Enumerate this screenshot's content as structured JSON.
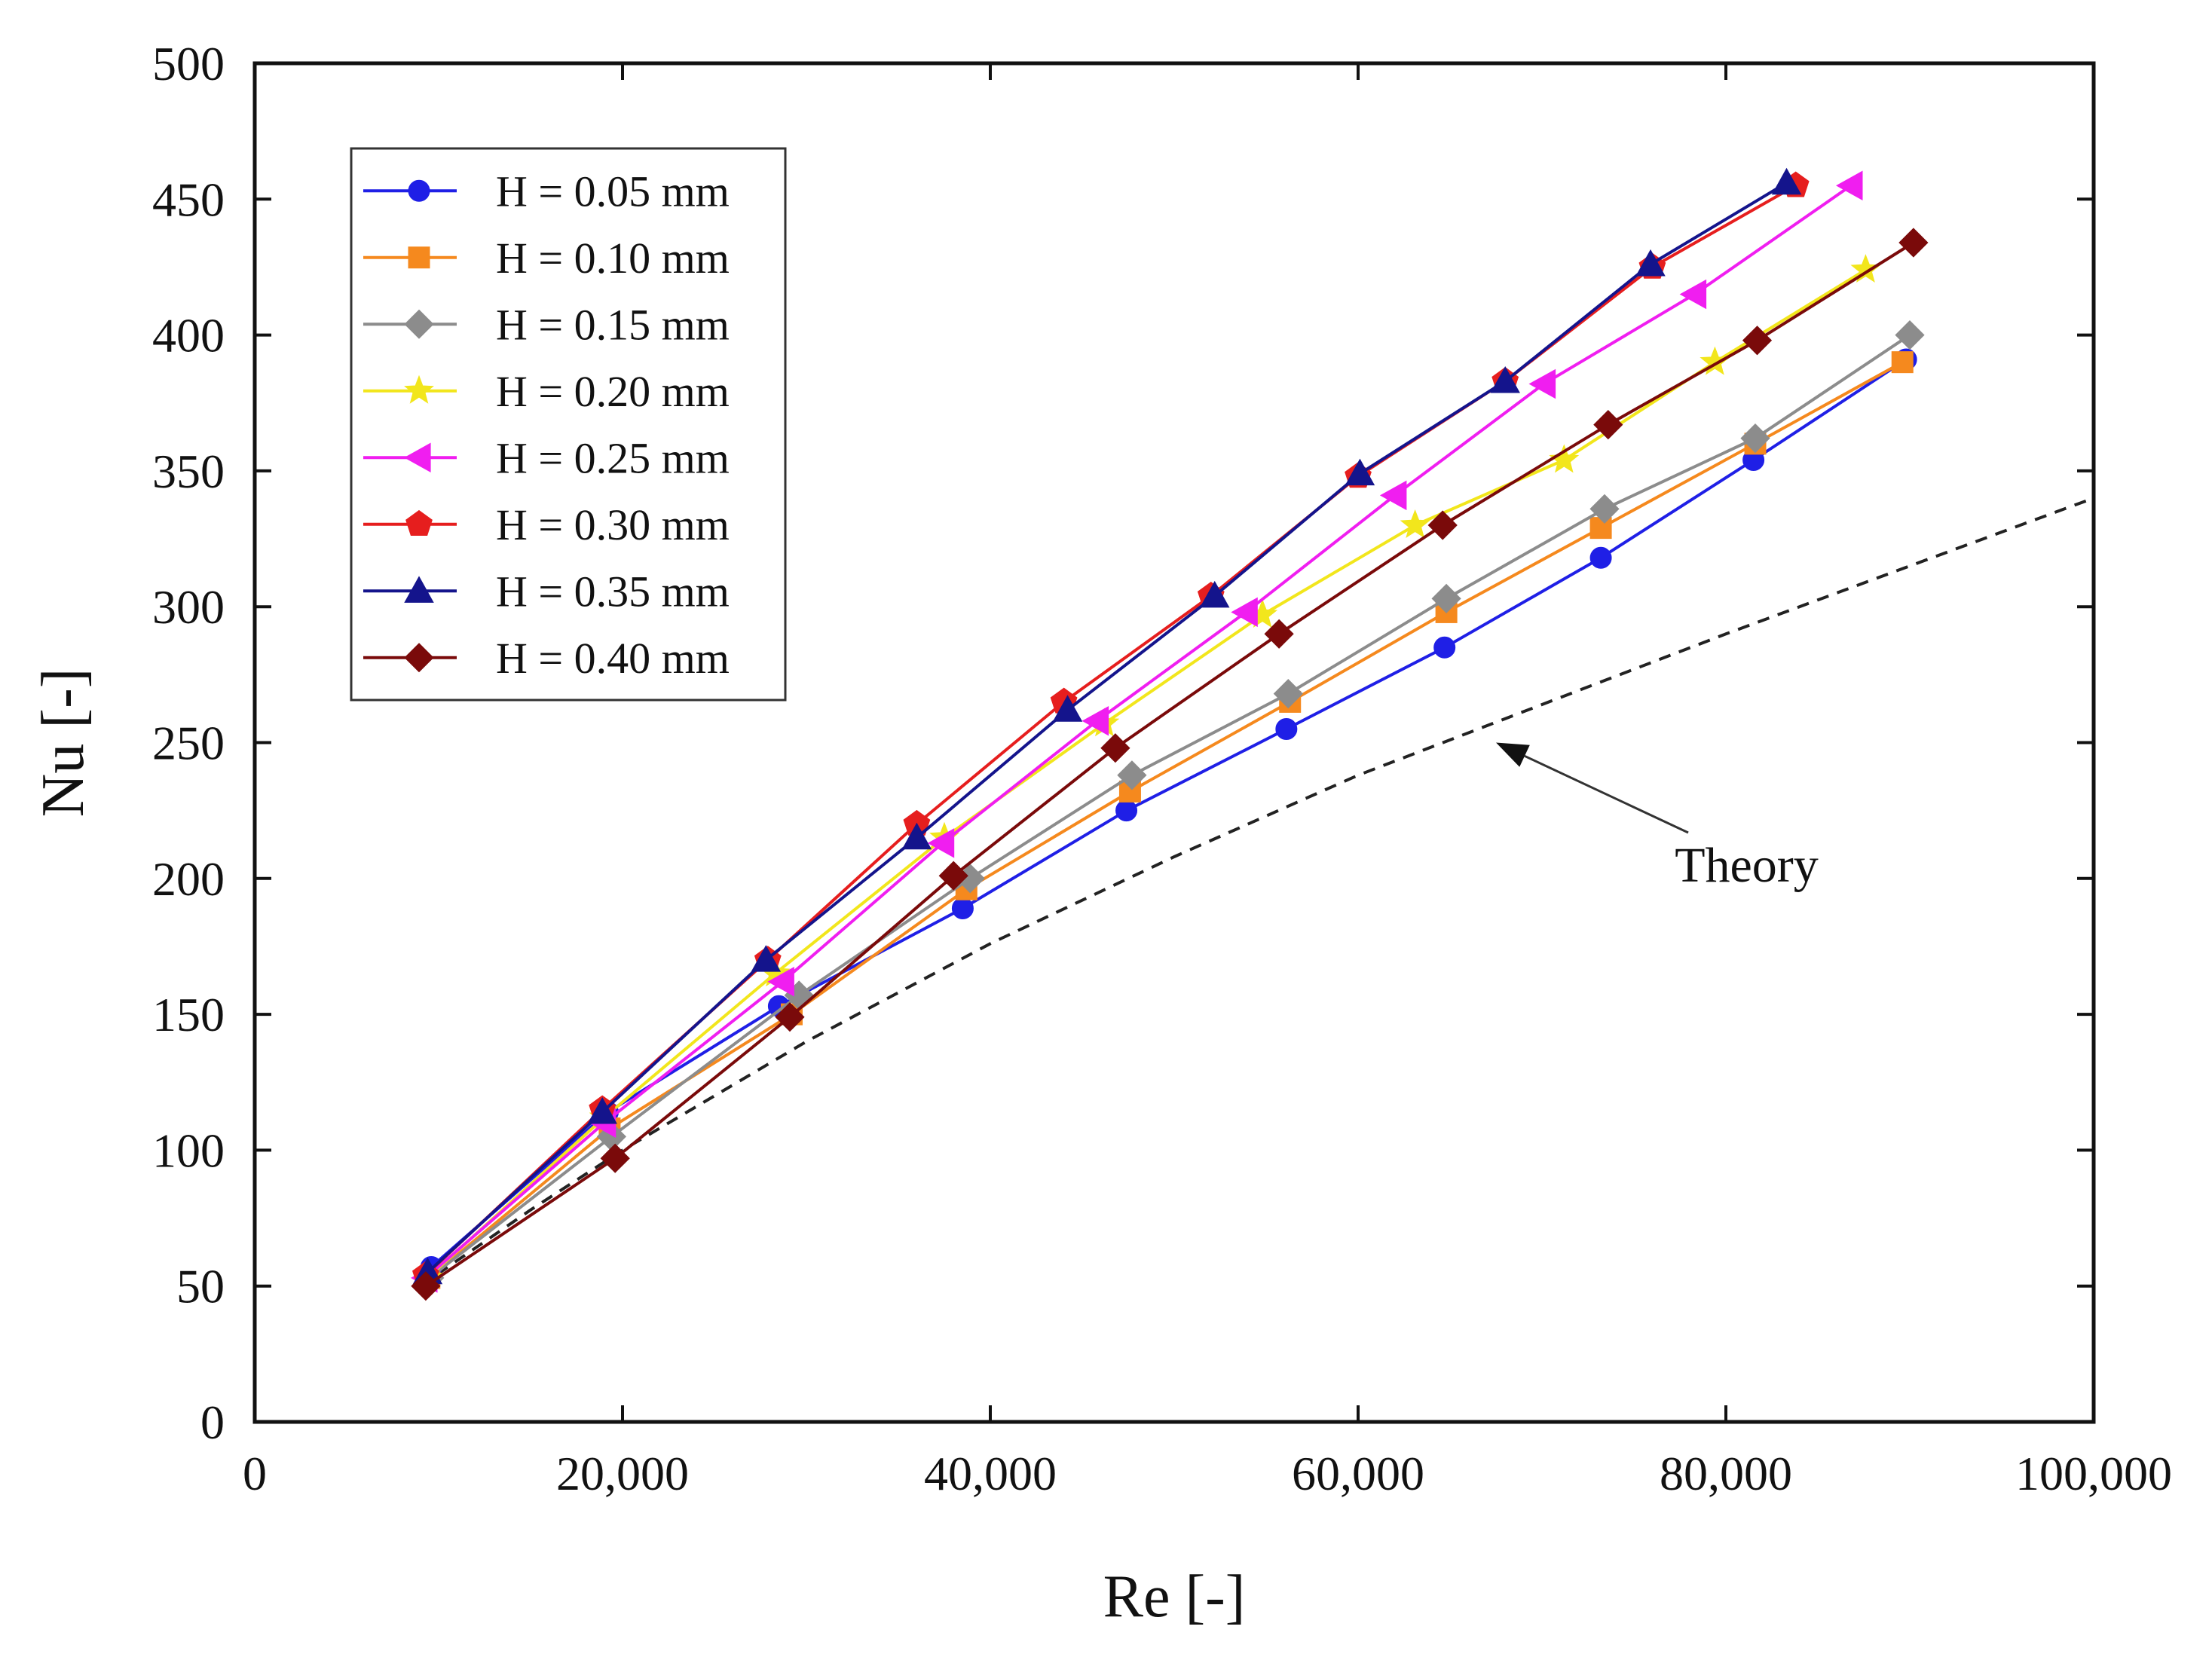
{
  "chart_data": {
    "type": "line",
    "title": "",
    "xlabel": "Re [-]",
    "ylabel": "Nu [-]",
    "xlim": [
      0,
      100000
    ],
    "ylim": [
      0,
      500
    ],
    "xticks": [
      0,
      20000,
      40000,
      60000,
      80000,
      100000
    ],
    "xtick_labels": [
      "0",
      "20,000",
      "40,000",
      "60,000",
      "80,000",
      "100,000"
    ],
    "yticks": [
      0,
      50,
      100,
      150,
      200,
      250,
      300,
      350,
      400,
      450,
      500
    ],
    "ytick_labels": [
      "0",
      "50",
      "100",
      "150",
      "200",
      "250",
      "300",
      "350",
      "400",
      "450",
      "500"
    ],
    "grid": false,
    "legend_position": "top-left",
    "series": [
      {
        "name": "H = 0.05 mm",
        "color": "#1f1fe6",
        "marker": "circle",
        "x": [
          9600,
          19200,
          28500,
          38500,
          47400,
          56100,
          64700,
          73200,
          81500,
          89800
        ],
        "y": [
          57,
          114,
          153,
          189,
          225,
          255,
          285,
          318,
          354,
          391
        ]
      },
      {
        "name": "H = 0.10 mm",
        "color": "#f5891e",
        "marker": "square",
        "x": [
          9500,
          19300,
          29200,
          38700,
          47600,
          56300,
          64800,
          73200,
          81600,
          89600
        ],
        "y": [
          53,
          108,
          150,
          196,
          232,
          265,
          298,
          329,
          360,
          390
        ]
      },
      {
        "name": "H = 0.15 mm",
        "color": "#8c8c8c",
        "marker": "diamond",
        "x": [
          9500,
          19400,
          29600,
          38900,
          47700,
          56200,
          64800,
          73400,
          81600,
          90000
        ],
        "y": [
          53,
          105,
          157,
          200,
          238,
          268,
          303,
          336,
          362,
          400
        ]
      },
      {
        "name": "H = 0.20 mm",
        "color": "#f2e61c",
        "marker": "star",
        "x": [
          9400,
          19000,
          28300,
          37500,
          46200,
          54800,
          63100,
          71200,
          79400,
          87600
        ],
        "y": [
          53,
          112,
          165,
          215,
          257,
          297,
          330,
          354,
          390,
          424
        ]
      },
      {
        "name": "H = 0.25 mm",
        "color": "#f01ef0",
        "marker": "triangle-left",
        "x": [
          9300,
          19000,
          28700,
          37400,
          45800,
          53900,
          62000,
          70100,
          78300,
          86800
        ],
        "y": [
          53,
          110,
          162,
          213,
          258,
          298,
          341,
          382,
          415,
          455
        ]
      },
      {
        "name": "H = 0.30 mm",
        "color": "#e61e1e",
        "marker": "pentagon",
        "x": [
          9300,
          18900,
          27900,
          36000,
          44000,
          52000,
          60000,
          68000,
          76000,
          83800
        ],
        "y": [
          54,
          115,
          170,
          220,
          265,
          304,
          348,
          383,
          425,
          455
        ]
      },
      {
        "name": "H = 0.35 mm",
        "color": "#14148c",
        "marker": "triangle-up",
        "x": [
          9400,
          18900,
          27800,
          36000,
          44200,
          52200,
          60100,
          68000,
          75900,
          83300
        ],
        "y": [
          55,
          114,
          170,
          215,
          262,
          304,
          349,
          383,
          426,
          456
        ]
      },
      {
        "name": "H = 0.40 mm",
        "color": "#7a0a0a",
        "marker": "diamond",
        "x": [
          9300,
          19600,
          29100,
          38000,
          46800,
          55700,
          64600,
          73600,
          81700,
          90200
        ],
        "y": [
          50,
          97,
          149,
          201,
          248,
          290,
          330,
          367,
          398,
          434
        ]
      }
    ],
    "theory": {
      "name": "Theory",
      "style": "dashed",
      "color": "#222222",
      "x": [
        9000,
        15000,
        20000,
        30000,
        40000,
        50000,
        60000,
        70000,
        80000,
        90000,
        100000
      ],
      "y": [
        50,
        78,
        100,
        140,
        176,
        208,
        238,
        264,
        290,
        315,
        340
      ]
    },
    "annotations": [
      {
        "text": "Theory",
        "arrow_target": [
          67500,
          250
        ],
        "text_position": [
          80500,
          205
        ]
      }
    ]
  }
}
